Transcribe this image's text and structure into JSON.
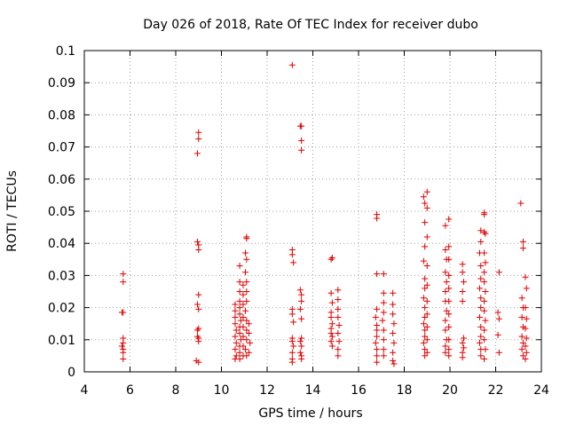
{
  "chart_data": {
    "type": "scatter",
    "title": "Day 026 of 2018, Rate Of TEC Index for receiver dubo",
    "xlabel": "GPS time / hours",
    "ylabel": "ROTI / TECUs",
    "xlim": [
      4,
      24
    ],
    "ylim": [
      0,
      0.1
    ],
    "xticks": [
      "4",
      "6",
      "8",
      "10",
      "12",
      "14",
      "16",
      "18",
      "20",
      "22",
      "24"
    ],
    "yticks": [
      "0",
      "0.01",
      "0.02",
      "0.03",
      "0.04",
      "0.05",
      "0.06",
      "0.07",
      "0.08",
      "0.09",
      "0.1"
    ],
    "grid": true,
    "marker": "+",
    "color": "#e00000",
    "points": [
      [
        5.7,
        0.0305
      ],
      [
        5.7,
        0.028
      ],
      [
        5.7,
        0.0185
      ],
      [
        5.65,
        0.0185
      ],
      [
        5.7,
        0.0105
      ],
      [
        5.7,
        0.009
      ],
      [
        5.65,
        0.008
      ],
      [
        5.7,
        0.007
      ],
      [
        5.7,
        0.006
      ],
      [
        5.7,
        0.004
      ],
      [
        9.0,
        0.0745
      ],
      [
        9.0,
        0.0725
      ],
      [
        8.95,
        0.068
      ],
      [
        8.95,
        0.0405
      ],
      [
        9.0,
        0.0395
      ],
      [
        9.0,
        0.038
      ],
      [
        9.0,
        0.024
      ],
      [
        8.95,
        0.021
      ],
      [
        9.0,
        0.0195
      ],
      [
        9.0,
        0.0135
      ],
      [
        8.95,
        0.013
      ],
      [
        8.95,
        0.011
      ],
      [
        9.0,
        0.0105
      ],
      [
        9.0,
        0.0095
      ],
      [
        8.9,
        0.0035
      ],
      [
        9.0,
        0.003
      ],
      [
        10.6,
        0.021
      ],
      [
        10.6,
        0.019
      ],
      [
        10.6,
        0.017
      ],
      [
        10.6,
        0.015
      ],
      [
        10.65,
        0.013
      ],
      [
        10.6,
        0.011
      ],
      [
        10.65,
        0.009
      ],
      [
        10.6,
        0.007
      ],
      [
        10.65,
        0.005
      ],
      [
        10.6,
        0.004
      ],
      [
        10.8,
        0.033
      ],
      [
        10.8,
        0.028
      ],
      [
        10.8,
        0.025
      ],
      [
        10.8,
        0.022
      ],
      [
        10.8,
        0.02
      ],
      [
        10.8,
        0.018
      ],
      [
        10.85,
        0.016
      ],
      [
        10.8,
        0.014
      ],
      [
        10.8,
        0.012
      ],
      [
        10.85,
        0.01
      ],
      [
        10.8,
        0.008
      ],
      [
        10.8,
        0.006
      ],
      [
        10.8,
        0.004
      ],
      [
        10.95,
        0.027
      ],
      [
        10.95,
        0.024
      ],
      [
        10.95,
        0.021
      ],
      [
        10.95,
        0.017
      ],
      [
        10.95,
        0.014
      ],
      [
        10.95,
        0.011
      ],
      [
        10.95,
        0.008
      ],
      [
        10.95,
        0.005
      ],
      [
        11.1,
        0.042
      ],
      [
        11.1,
        0.0415
      ],
      [
        11.05,
        0.037
      ],
      [
        11.1,
        0.035
      ],
      [
        11.05,
        0.031
      ],
      [
        11.1,
        0.028
      ],
      [
        11.1,
        0.025
      ],
      [
        11.1,
        0.022
      ],
      [
        11.05,
        0.019
      ],
      [
        11.1,
        0.016
      ],
      [
        11.1,
        0.013
      ],
      [
        11.1,
        0.01
      ],
      [
        11.05,
        0.007
      ],
      [
        11.1,
        0.005
      ],
      [
        11.2,
        0.015
      ],
      [
        11.2,
        0.012
      ],
      [
        11.25,
        0.009
      ],
      [
        11.2,
        0.006
      ],
      [
        13.1,
        0.0955
      ],
      [
        13.1,
        0.038
      ],
      [
        13.1,
        0.0365
      ],
      [
        13.15,
        0.034
      ],
      [
        13.1,
        0.0195
      ],
      [
        13.1,
        0.018
      ],
      [
        13.15,
        0.0155
      ],
      [
        13.1,
        0.0105
      ],
      [
        13.1,
        0.0095
      ],
      [
        13.15,
        0.008
      ],
      [
        13.1,
        0.006
      ],
      [
        13.1,
        0.004
      ],
      [
        13.1,
        0.003
      ],
      [
        13.45,
        0.0765
      ],
      [
        13.5,
        0.0765
      ],
      [
        13.5,
        0.072
      ],
      [
        13.5,
        0.069
      ],
      [
        13.45,
        0.0255
      ],
      [
        13.5,
        0.024
      ],
      [
        13.5,
        0.022
      ],
      [
        13.45,
        0.0195
      ],
      [
        13.5,
        0.0165
      ],
      [
        13.5,
        0.0105
      ],
      [
        13.45,
        0.0095
      ],
      [
        13.5,
        0.008
      ],
      [
        13.45,
        0.006
      ],
      [
        13.5,
        0.005
      ],
      [
        13.5,
        0.004
      ],
      [
        14.85,
        0.0355
      ],
      [
        14.8,
        0.035
      ],
      [
        14.8,
        0.0245
      ],
      [
        14.85,
        0.0215
      ],
      [
        14.8,
        0.0185
      ],
      [
        14.8,
        0.017
      ],
      [
        14.85,
        0.015
      ],
      [
        14.8,
        0.0135
      ],
      [
        14.8,
        0.012
      ],
      [
        14.85,
        0.011
      ],
      [
        14.8,
        0.0095
      ],
      [
        14.85,
        0.008
      ],
      [
        15.1,
        0.0255
      ],
      [
        15.1,
        0.0225
      ],
      [
        15.1,
        0.0195
      ],
      [
        15.1,
        0.017
      ],
      [
        15.15,
        0.0145
      ],
      [
        15.1,
        0.012
      ],
      [
        15.15,
        0.0095
      ],
      [
        15.1,
        0.007
      ],
      [
        15.1,
        0.005
      ],
      [
        16.8,
        0.049
      ],
      [
        16.8,
        0.0478
      ],
      [
        16.8,
        0.0305
      ],
      [
        16.8,
        0.0195
      ],
      [
        16.75,
        0.017
      ],
      [
        16.8,
        0.0145
      ],
      [
        16.8,
        0.013
      ],
      [
        16.8,
        0.011
      ],
      [
        16.75,
        0.009
      ],
      [
        16.8,
        0.007
      ],
      [
        16.8,
        0.005
      ],
      [
        16.8,
        0.003
      ],
      [
        17.1,
        0.0305
      ],
      [
        17.1,
        0.0245
      ],
      [
        17.1,
        0.0215
      ],
      [
        17.1,
        0.0185
      ],
      [
        17.05,
        0.016
      ],
      [
        17.1,
        0.013
      ],
      [
        17.1,
        0.01
      ],
      [
        17.1,
        0.007
      ],
      [
        17.1,
        0.005
      ],
      [
        17.5,
        0.0245
      ],
      [
        17.5,
        0.021
      ],
      [
        17.5,
        0.018
      ],
      [
        17.55,
        0.015
      ],
      [
        17.5,
        0.012
      ],
      [
        17.55,
        0.009
      ],
      [
        17.5,
        0.006
      ],
      [
        17.5,
        0.0035
      ],
      [
        17.55,
        0.0025
      ],
      [
        18.85,
        0.0545
      ],
      [
        18.9,
        0.0525
      ],
      [
        18.9,
        0.0465
      ],
      [
        18.9,
        0.039
      ],
      [
        18.85,
        0.0345
      ],
      [
        18.9,
        0.029
      ],
      [
        18.9,
        0.026
      ],
      [
        18.85,
        0.023
      ],
      [
        18.9,
        0.02
      ],
      [
        18.9,
        0.017
      ],
      [
        18.85,
        0.015
      ],
      [
        18.9,
        0.013
      ],
      [
        18.9,
        0.011
      ],
      [
        18.85,
        0.009
      ],
      [
        18.9,
        0.007
      ],
      [
        18.9,
        0.005
      ],
      [
        19.0,
        0.056
      ],
      [
        19.0,
        0.051
      ],
      [
        19.0,
        0.042
      ],
      [
        19.0,
        0.033
      ],
      [
        19.0,
        0.027
      ],
      [
        19.0,
        0.022
      ],
      [
        19.0,
        0.018
      ],
      [
        19.0,
        0.014
      ],
      [
        19.0,
        0.01
      ],
      [
        19.0,
        0.006
      ],
      [
        19.8,
        0.0455
      ],
      [
        19.8,
        0.038
      ],
      [
        19.85,
        0.035
      ],
      [
        19.8,
        0.031
      ],
      [
        19.85,
        0.028
      ],
      [
        19.8,
        0.025
      ],
      [
        19.8,
        0.022
      ],
      [
        19.85,
        0.019
      ],
      [
        19.8,
        0.016
      ],
      [
        19.8,
        0.013
      ],
      [
        19.85,
        0.01
      ],
      [
        19.8,
        0.008
      ],
      [
        19.8,
        0.006
      ],
      [
        19.95,
        0.0475
      ],
      [
        19.95,
        0.039
      ],
      [
        19.95,
        0.035
      ],
      [
        19.95,
        0.03
      ],
      [
        19.95,
        0.026
      ],
      [
        19.95,
        0.022
      ],
      [
        19.95,
        0.018
      ],
      [
        19.95,
        0.014
      ],
      [
        19.95,
        0.01
      ],
      [
        19.95,
        0.007
      ],
      [
        19.95,
        0.005
      ],
      [
        20.55,
        0.0335
      ],
      [
        20.55,
        0.031
      ],
      [
        20.6,
        0.028
      ],
      [
        20.55,
        0.025
      ],
      [
        20.55,
        0.022
      ],
      [
        20.6,
        0.0105
      ],
      [
        20.55,
        0.009
      ],
      [
        20.6,
        0.0075
      ],
      [
        20.55,
        0.006
      ],
      [
        20.55,
        0.0045
      ],
      [
        21.35,
        0.044
      ],
      [
        21.35,
        0.0405
      ],
      [
        21.3,
        0.037
      ],
      [
        21.35,
        0.033
      ],
      [
        21.35,
        0.029
      ],
      [
        21.3,
        0.026
      ],
      [
        21.35,
        0.023
      ],
      [
        21.35,
        0.02
      ],
      [
        21.3,
        0.017
      ],
      [
        21.35,
        0.014
      ],
      [
        21.35,
        0.011
      ],
      [
        21.3,
        0.009
      ],
      [
        21.35,
        0.007
      ],
      [
        21.35,
        0.005
      ],
      [
        21.5,
        0.0495
      ],
      [
        21.5,
        0.049
      ],
      [
        21.5,
        0.0435
      ],
      [
        21.55,
        0.043
      ],
      [
        21.5,
        0.037
      ],
      [
        21.55,
        0.034
      ],
      [
        21.5,
        0.031
      ],
      [
        21.5,
        0.028
      ],
      [
        21.55,
        0.025
      ],
      [
        21.5,
        0.022
      ],
      [
        21.5,
        0.019
      ],
      [
        21.55,
        0.016
      ],
      [
        21.5,
        0.013
      ],
      [
        21.5,
        0.01
      ],
      [
        21.55,
        0.007
      ],
      [
        21.5,
        0.004
      ],
      [
        22.15,
        0.031
      ],
      [
        22.1,
        0.0185
      ],
      [
        22.15,
        0.0165
      ],
      [
        22.1,
        0.0115
      ],
      [
        22.15,
        0.006
      ],
      [
        23.1,
        0.0525
      ],
      [
        23.2,
        0.0405
      ],
      [
        23.2,
        0.0385
      ],
      [
        23.15,
        0.023
      ],
      [
        23.2,
        0.02
      ],
      [
        23.15,
        0.017
      ],
      [
        23.2,
        0.014
      ],
      [
        23.15,
        0.011
      ],
      [
        23.2,
        0.009
      ],
      [
        23.15,
        0.007
      ],
      [
        23.2,
        0.005
      ],
      [
        23.3,
        0.0295
      ],
      [
        23.35,
        0.026
      ],
      [
        23.3,
        0.02
      ],
      [
        23.35,
        0.0165
      ],
      [
        23.3,
        0.0135
      ],
      [
        23.35,
        0.0105
      ],
      [
        23.3,
        0.008
      ],
      [
        23.35,
        0.006
      ],
      [
        23.3,
        0.004
      ]
    ]
  }
}
